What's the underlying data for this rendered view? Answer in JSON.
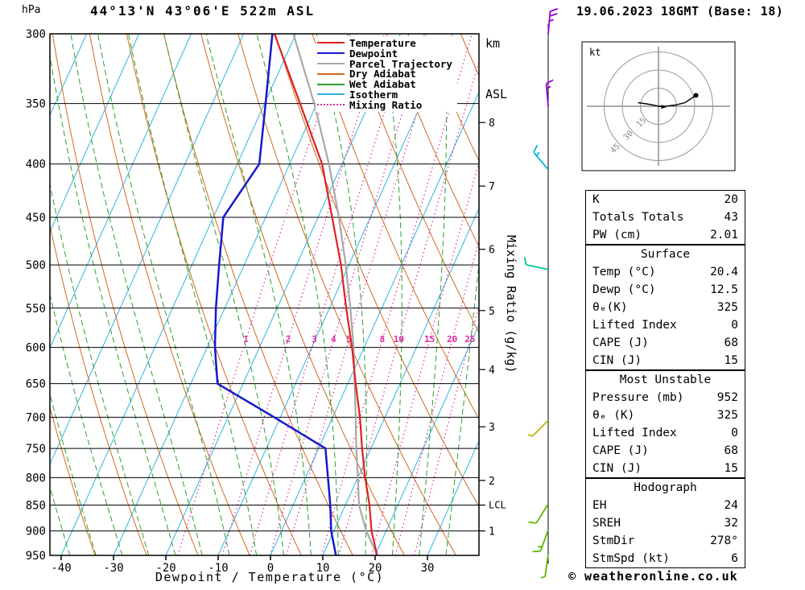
{
  "header": {
    "pressure_unit": "hPa",
    "title": "44°13'N 43°06'E 522m ASL",
    "datetime": "19.06.2023 18GMT (Base: 18)",
    "km_label": "km",
    "asl_label": "ASL"
  },
  "axis_labels": {
    "xlabel": "Dewpoint / Temperature (°C)",
    "mixing_ratio_axis": "Mixing Ratio (g/kg)"
  },
  "legend": [
    {
      "label": "Temperature",
      "color": "#e02020",
      "style": "solid"
    },
    {
      "label": "Dewpoint",
      "color": "#1818cc",
      "style": "solid"
    },
    {
      "label": "Parcel Trajectory",
      "color": "#a8a8a8",
      "style": "solid"
    },
    {
      "label": "Dry Adiabat",
      "color": "#d2691e",
      "style": "solid"
    },
    {
      "label": "Wet Adiabat",
      "color": "#2ca02c",
      "style": "solid"
    },
    {
      "label": "Isotherm",
      "color": "#30b4e0",
      "style": "solid"
    },
    {
      "label": "Mixing Ratio",
      "color": "#e028a0",
      "style": "dotted"
    }
  ],
  "chart_data": {
    "type": "line",
    "diagram": "skew-t-log-p",
    "title": "44°13'N 43°06'E 522m ASL",
    "x_axis": {
      "label": "Dewpoint / Temperature (°C)",
      "ticks_C": [
        -40,
        -30,
        -20,
        -10,
        0,
        10,
        20,
        30
      ]
    },
    "y_axis": {
      "label": "hPa",
      "scale": "log",
      "ticks_hPa": [
        300,
        350,
        400,
        450,
        500,
        550,
        600,
        650,
        700,
        750,
        800,
        850,
        900,
        950
      ]
    },
    "pressure_hPa": [
      950,
      900,
      850,
      800,
      750,
      700,
      650,
      600,
      550,
      500,
      450,
      400,
      350,
      300
    ],
    "series": [
      {
        "name": "Temperature",
        "color": "#e02020",
        "values_C": [
          20.4,
          17.2,
          14.6,
          11.4,
          8.3,
          5.2,
          1.5,
          -2.3,
          -6.8,
          -11.5,
          -17.3,
          -23.8,
          -33.2,
          -44.1
        ]
      },
      {
        "name": "Dewpoint",
        "color": "#1818cc",
        "values_C": [
          12.5,
          9.5,
          7.1,
          4.3,
          1.3,
          -11.2,
          -24.9,
          -28.5,
          -31.7,
          -34.8,
          -38.1,
          -35.8,
          -39.8,
          -44.5
        ]
      },
      {
        "name": "Parcel Trajectory",
        "color": "#a8a8a8",
        "values_C": [
          20.4,
          16.2,
          12.6,
          10.0,
          7.2,
          4.4,
          1.3,
          -2.0,
          -6.0,
          -10.6,
          -16.0,
          -22.5,
          -30.5,
          -40.5
        ]
      }
    ],
    "background": {
      "isotherms_C": {
        "min": -90,
        "max": 40,
        "step": 10,
        "color": "#30b4e0"
      },
      "dry_adiabats_C": {
        "min": -40,
        "max": 120,
        "step": 10,
        "color": "#d2691e"
      },
      "wet_adiabats_C": {
        "min": -35,
        "max": 35,
        "step": 5,
        "color": "#2ca02c"
      },
      "mixing_ratio_gkg": {
        "values": [
          1,
          2,
          3,
          4,
          5,
          8,
          10,
          15,
          20,
          25
        ],
        "color": "#e028a0",
        "label_pressure_hPa": 590
      }
    },
    "km_asl_ticks": [
      {
        "km": 1,
        "hPa": 900
      },
      {
        "km": 2,
        "hPa": 805
      },
      {
        "km": 3,
        "hPa": 715
      },
      {
        "km": 4,
        "hPa": 630
      },
      {
        "km": 5,
        "hPa": 553
      },
      {
        "km": 6,
        "hPa": 483
      },
      {
        "km": 7,
        "hPa": 420
      },
      {
        "km": 8,
        "hPa": 365
      }
    ],
    "lcl": {
      "label": "LCL",
      "hPa": 850
    }
  },
  "wind_barbs": {
    "levels": [
      {
        "hPa": 300,
        "color": "#9400d3",
        "rotation_deg": 5,
        "ticks": [
          "full",
          "full",
          "half"
        ]
      },
      {
        "hPa": 352,
        "color": "#9400d3",
        "rotation_deg": -5,
        "ticks": [
          "full",
          "half"
        ]
      },
      {
        "hPa": 405,
        "color": "#00b8d4",
        "rotation_deg": -40,
        "ticks": [
          "full",
          "half"
        ]
      },
      {
        "hPa": 505,
        "color": "#00c896",
        "rotation_deg": -78,
        "ticks": [
          "full"
        ]
      },
      {
        "hPa": 705,
        "color": "#b8b800",
        "rotation_deg": -135,
        "ticks": [
          "half"
        ]
      },
      {
        "hPa": 848,
        "color": "#5cb800",
        "rotation_deg": -148,
        "ticks": [
          "full"
        ]
      },
      {
        "hPa": 898,
        "color": "#5cb800",
        "rotation_deg": -160,
        "ticks": [
          "full",
          "half"
        ]
      },
      {
        "hPa": 948,
        "color": "#5cb800",
        "rotation_deg": -172,
        "ticks": [
          "half"
        ]
      }
    ]
  },
  "hodograph": {
    "unit_label": "kt",
    "rings_kt": [
      15,
      30,
      45
    ],
    "trace_uv_kt": [
      [
        -17,
        3
      ],
      [
        -10,
        2
      ],
      [
        -4,
        1
      ],
      [
        0,
        0
      ],
      [
        6,
        0
      ],
      [
        14,
        1
      ],
      [
        22,
        3
      ],
      [
        31,
        9
      ]
    ],
    "storm_motion": {
      "dir_deg": 278,
      "speed_kt": 6
    }
  },
  "tables": [
    {
      "name": "indices",
      "rows": [
        [
          "K",
          "20"
        ],
        [
          "Totals Totals",
          "43"
        ],
        [
          "PW (cm)",
          "2.01"
        ]
      ]
    },
    {
      "name": "surface",
      "title": "Surface",
      "rows": [
        [
          "Temp (°C)",
          "20.4"
        ],
        [
          "Dewp (°C)",
          "12.5"
        ],
        [
          "θₑ(K)",
          "325"
        ],
        [
          "Lifted Index",
          "0"
        ],
        [
          "CAPE (J)",
          "68"
        ],
        [
          "CIN (J)",
          "15"
        ]
      ]
    },
    {
      "name": "most-unstable",
      "title": "Most Unstable",
      "rows": [
        [
          "Pressure (mb)",
          "952"
        ],
        [
          "θₑ (K)",
          "325"
        ],
        [
          "Lifted Index",
          "0"
        ],
        [
          "CAPE (J)",
          "68"
        ],
        [
          "CIN (J)",
          "15"
        ]
      ]
    },
    {
      "name": "hodograph",
      "title": "Hodograph",
      "rows": [
        [
          "EH",
          "24"
        ],
        [
          "SREH",
          "32"
        ],
        [
          "StmDir",
          "278°"
        ],
        [
          "StmSpd (kt)",
          "6"
        ]
      ]
    }
  ],
  "footer": {
    "copyright": "© weatheronline.co.uk"
  }
}
